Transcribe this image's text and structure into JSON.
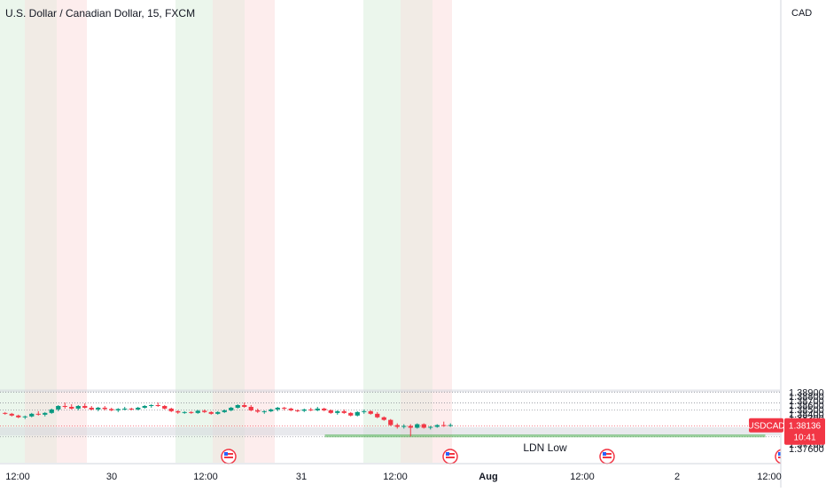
{
  "chart_data": {
    "type": "candlestick",
    "title": "U.S. Dollar / Canadian Dollar, 15, FXCM",
    "symbol": "USDCAD",
    "currency": "CAD",
    "ylim": [
      1.3755,
      1.3905
    ],
    "y_ticks": [
      "1.37600",
      "1.37700",
      "1.37800",
      "1.37900",
      "1.38000",
      "1.38100",
      "1.38200",
      "1.38300",
      "1.38400",
      "1.38500",
      "1.38600",
      "1.38700",
      "1.38800",
      "1.38900"
    ],
    "y_tick_values": [
      1.376,
      1.377,
      1.378,
      1.379,
      1.38,
      1.381,
      1.382,
      1.383,
      1.384,
      1.385,
      1.386,
      1.387,
      1.388,
      1.389
    ],
    "x_ticks": [
      "12:00",
      "30",
      "12:00",
      "31",
      "12:00",
      "Aug",
      "12:00",
      "2",
      "12:00"
    ],
    "current_price": "1.38136",
    "current_price_value": 1.38136,
    "countdown": "10:41",
    "dotted_levels": [
      1.389,
      1.3865,
      1.3849,
      1.3812,
      1.3787
    ],
    "bull_color": "#089981",
    "bear_color": "#f23645",
    "zone": {
      "label": "LDN Low",
      "top": 1.37915,
      "bottom": 1.3787,
      "color": "#4caf50"
    },
    "gray_bands": [
      [
        1.3896,
        1.389
      ],
      [
        1.3809,
        1.379
      ]
    ],
    "candles": [
      [
        1.3842,
        1.3844,
        1.3838,
        1.384
      ],
      [
        1.384,
        1.3842,
        1.3834,
        1.3836
      ],
      [
        1.3836,
        1.3838,
        1.383,
        1.3832
      ],
      [
        1.3832,
        1.3836,
        1.3828,
        1.3834
      ],
      [
        1.3834,
        1.3842,
        1.3832,
        1.384
      ],
      [
        1.384,
        1.3846,
        1.3836,
        1.3838
      ],
      [
        1.3838,
        1.3844,
        1.3834,
        1.3842
      ],
      [
        1.3842,
        1.3852,
        1.384,
        1.385
      ],
      [
        1.385,
        1.386,
        1.3846,
        1.3858
      ],
      [
        1.3858,
        1.3866,
        1.3852,
        1.3856
      ],
      [
        1.3856,
        1.3862,
        1.385,
        1.3852
      ],
      [
        1.3852,
        1.386,
        1.3848,
        1.3858
      ],
      [
        1.3858,
        1.3864,
        1.3852,
        1.3854
      ],
      [
        1.3854,
        1.3858,
        1.3848,
        1.385
      ],
      [
        1.385,
        1.3856,
        1.3846,
        1.3854
      ],
      [
        1.3854,
        1.3858,
        1.3848,
        1.3851
      ],
      [
        1.3851,
        1.3854,
        1.3846,
        1.3848
      ],
      [
        1.3848,
        1.3853,
        1.3844,
        1.3851
      ],
      [
        1.3851,
        1.3856,
        1.3848,
        1.3852
      ],
      [
        1.3852,
        1.3854,
        1.3848,
        1.385
      ],
      [
        1.385,
        1.3856,
        1.3848,
        1.3854
      ],
      [
        1.3854,
        1.386,
        1.3852,
        1.3858
      ],
      [
        1.3858,
        1.3862,
        1.3854,
        1.386
      ],
      [
        1.386,
        1.3866,
        1.3856,
        1.3858
      ],
      [
        1.3858,
        1.386,
        1.385,
        1.3852
      ],
      [
        1.3852,
        1.3854,
        1.3844,
        1.3846
      ],
      [
        1.3846,
        1.3848,
        1.384,
        1.3843
      ],
      [
        1.3843,
        1.3846,
        1.384,
        1.3844
      ],
      [
        1.3844,
        1.3846,
        1.384,
        1.3842
      ],
      [
        1.3842,
        1.3849,
        1.384,
        1.3847
      ],
      [
        1.3847,
        1.385,
        1.3842,
        1.3844
      ],
      [
        1.3844,
        1.3846,
        1.3838,
        1.384
      ],
      [
        1.384,
        1.3846,
        1.3838,
        1.3844
      ],
      [
        1.3844,
        1.385,
        1.3842,
        1.3848
      ],
      [
        1.3848,
        1.3856,
        1.3846,
        1.3854
      ],
      [
        1.3854,
        1.3862,
        1.3852,
        1.386
      ],
      [
        1.386,
        1.3866,
        1.3854,
        1.3856
      ],
      [
        1.3856,
        1.386,
        1.3846,
        1.3848
      ],
      [
        1.3848,
        1.3852,
        1.3842,
        1.3845
      ],
      [
        1.3845,
        1.3848,
        1.384,
        1.3846
      ],
      [
        1.3846,
        1.3852,
        1.3844,
        1.385
      ],
      [
        1.385,
        1.3856,
        1.3846,
        1.3854
      ],
      [
        1.3854,
        1.3856,
        1.3848,
        1.3852
      ],
      [
        1.3852,
        1.3854,
        1.3846,
        1.3848
      ],
      [
        1.3848,
        1.385,
        1.3844,
        1.3847
      ],
      [
        1.3847,
        1.3852,
        1.3844,
        1.385
      ],
      [
        1.385,
        1.3854,
        1.3846,
        1.3848
      ],
      [
        1.3848,
        1.3856,
        1.3846,
        1.3852
      ],
      [
        1.3852,
        1.3854,
        1.3846,
        1.3848
      ],
      [
        1.3848,
        1.385,
        1.384,
        1.3842
      ],
      [
        1.3842,
        1.3848,
        1.3838,
        1.3846
      ],
      [
        1.3846,
        1.385,
        1.384,
        1.3842
      ],
      [
        1.3842,
        1.3844,
        1.3834,
        1.3836
      ],
      [
        1.3836,
        1.3846,
        1.3834,
        1.3844
      ],
      [
        1.3844,
        1.385,
        1.384,
        1.3846
      ],
      [
        1.3846,
        1.3848,
        1.3838,
        1.384
      ],
      [
        1.384,
        1.3844,
        1.383,
        1.3832
      ],
      [
        1.3832,
        1.3834,
        1.3824,
        1.3826
      ],
      [
        1.3826,
        1.3828,
        1.3812,
        1.3814
      ],
      [
        1.3814,
        1.3818,
        1.3806,
        1.381
      ],
      [
        1.381,
        1.3816,
        1.3806,
        1.3812
      ],
      [
        1.3812,
        1.3816,
        1.3788,
        1.3808
      ],
      [
        1.3808,
        1.3818,
        1.3806,
        1.3816
      ],
      [
        1.3816,
        1.3818,
        1.3806,
        1.3808
      ],
      [
        1.3808,
        1.3812,
        1.3804,
        1.381
      ],
      [
        1.381,
        1.3816,
        1.3808,
        1.3814
      ],
      [
        1.3814,
        1.3822,
        1.381,
        1.3812
      ],
      [
        1.3812,
        1.3818,
        1.381,
        1.3814
      ]
    ]
  }
}
